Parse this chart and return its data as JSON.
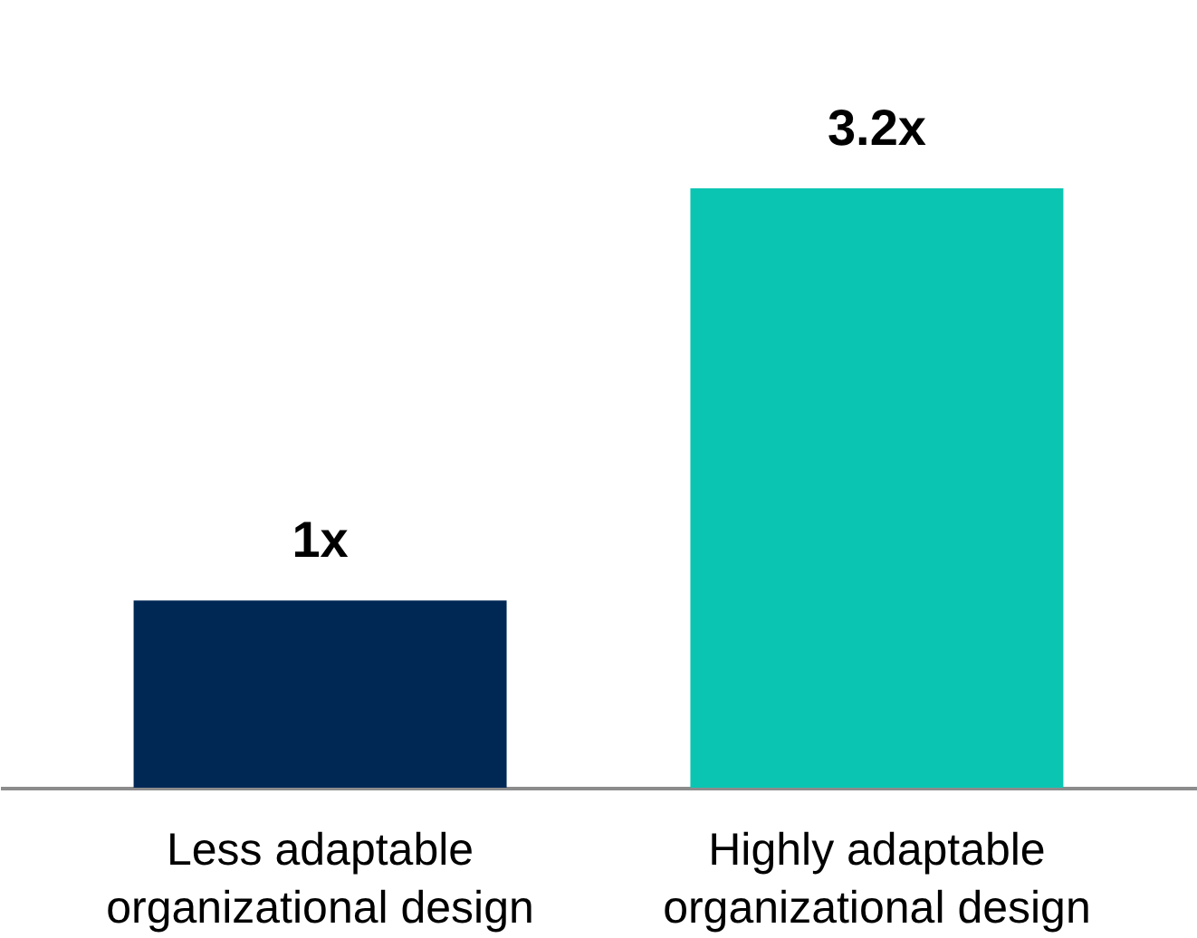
{
  "chart_data": {
    "type": "bar",
    "categories": [
      "Less adaptable organizational design",
      "Highly adaptable organizational design"
    ],
    "values": [
      1,
      3.2
    ],
    "colors": [
      "#002855",
      "#0bc5b3"
    ],
    "value_labels": [
      "1x",
      "3.2x"
    ],
    "grid": false,
    "legend": false
  }
}
